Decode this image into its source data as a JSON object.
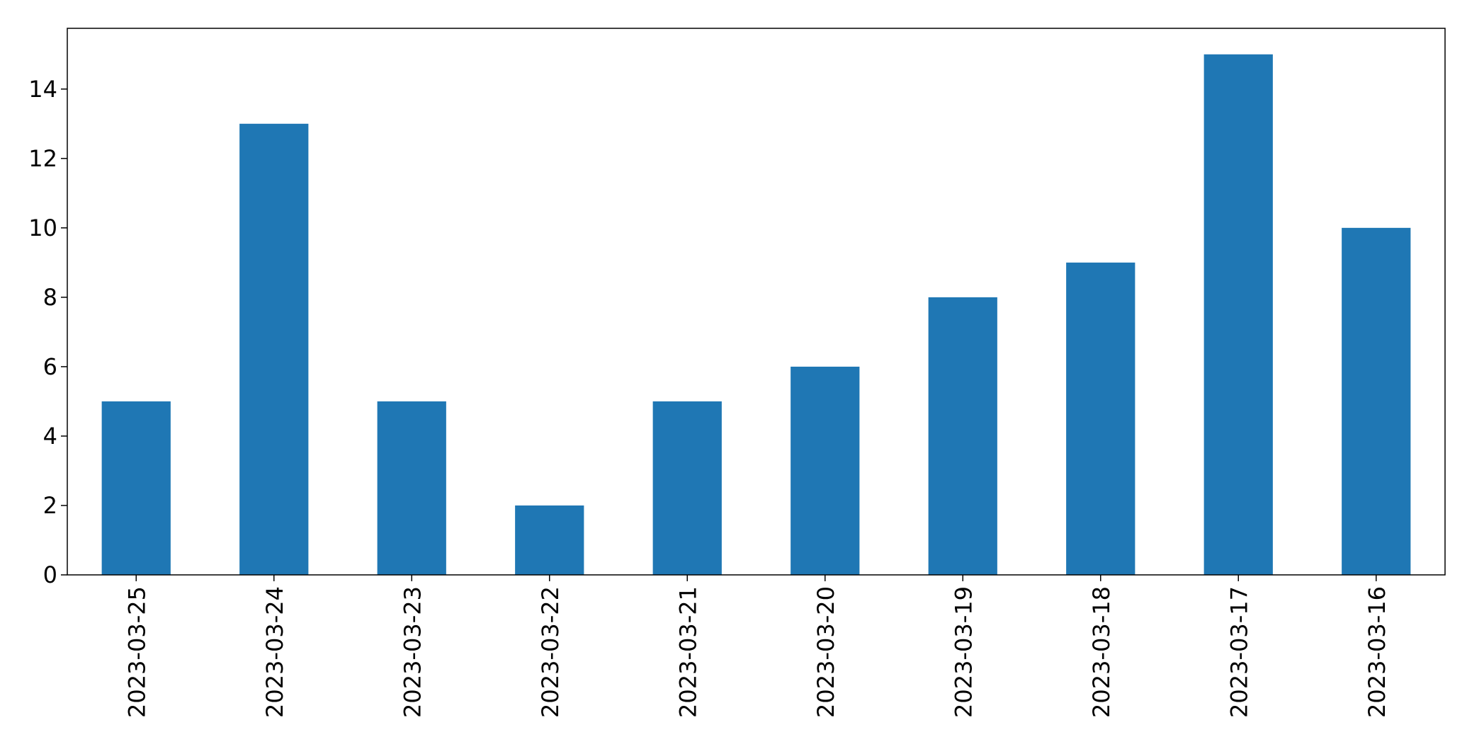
{
  "chart_data": {
    "type": "bar",
    "title": "",
    "xlabel": "",
    "ylabel": "",
    "categories": [
      "2023-03-25",
      "2023-03-24",
      "2023-03-23",
      "2023-03-22",
      "2023-03-21",
      "2023-03-20",
      "2023-03-19",
      "2023-03-18",
      "2023-03-17",
      "2023-03-16"
    ],
    "values": [
      5,
      13,
      5,
      2,
      5,
      6,
      8,
      9,
      15,
      10
    ],
    "ylim": [
      0,
      15.75
    ],
    "yticks": [
      0,
      2,
      4,
      6,
      8,
      10,
      12,
      14
    ],
    "bar_color": "#1f77b4",
    "grid": false,
    "legend": false,
    "xtick_rotation": "vertical"
  }
}
